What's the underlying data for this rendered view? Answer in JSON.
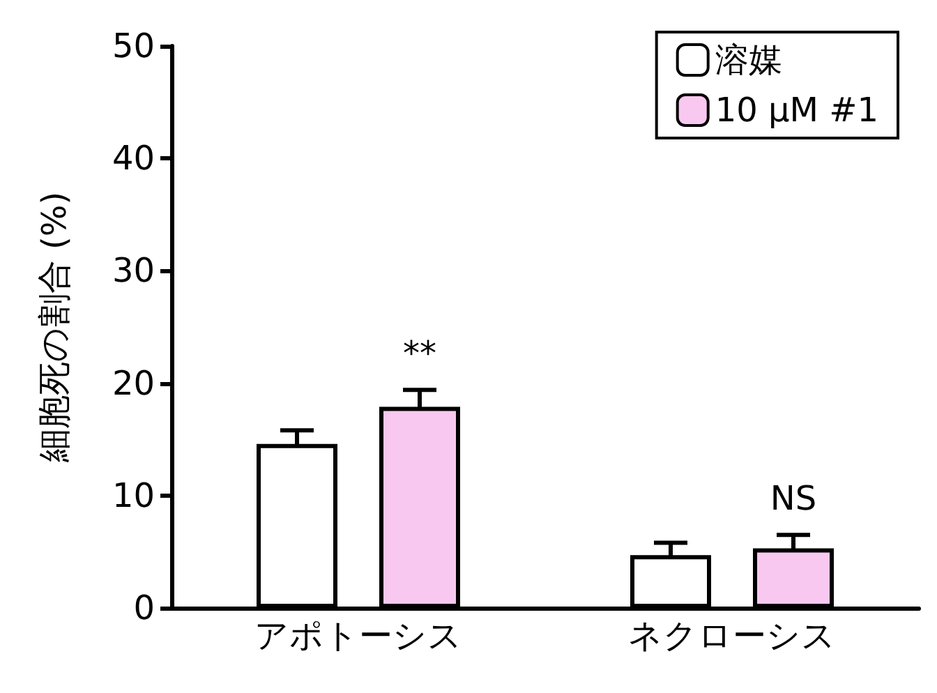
{
  "chart_data": {
    "type": "bar",
    "ylabel": "細胞死の割合 (%)",
    "categories": [
      "アポトーシス",
      "ネクローシス"
    ],
    "series": [
      {
        "name": "溶媒",
        "color": "#ffffff",
        "values": [
          14.6,
          4.7
        ],
        "errors": [
          1.2,
          1.1
        ]
      },
      {
        "name": "10 µM #1",
        "color": "#f9c8f0",
        "values": [
          17.9,
          5.3
        ],
        "errors": [
          1.5,
          1.2
        ]
      }
    ],
    "ylim": [
      0,
      50
    ],
    "yticks": [
      0,
      10,
      20,
      30,
      40,
      50
    ],
    "grid": false,
    "legend": "top right",
    "annotations": [
      "**",
      "NS"
    ]
  }
}
